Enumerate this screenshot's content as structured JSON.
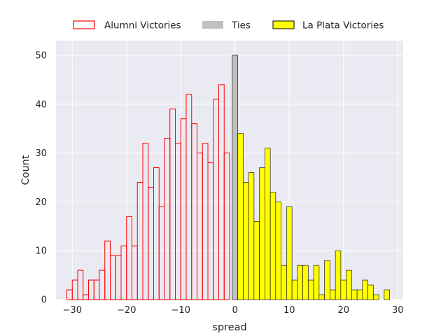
{
  "chart_data": {
    "type": "histogram",
    "title": "",
    "xlabel": "spread",
    "ylabel": "Count",
    "xlim": [
      -33,
      31
    ],
    "ylim": [
      0,
      53
    ],
    "bin_width": 1,
    "xticks": [
      -30,
      -20,
      -10,
      0,
      10,
      20,
      30
    ],
    "xtick_labels": [
      "−30",
      "−20",
      "−10",
      "0",
      "10",
      "20",
      "30"
    ],
    "yticks": [
      0,
      10,
      20,
      30,
      40,
      50
    ],
    "ytick_labels": [
      "0",
      "10",
      "20",
      "30",
      "40",
      "50"
    ],
    "grid": true,
    "legend_position": "top, above plot",
    "series": [
      {
        "name": "Alumni Victories",
        "style": "outline",
        "color": "#ff0000",
        "bin_starts": [
          -31,
          -30,
          -29,
          -28,
          -27,
          -26,
          -25,
          -24,
          -23,
          -22,
          -21,
          -20,
          -19,
          -18,
          -17,
          -16,
          -15,
          -14,
          -13,
          -12,
          -11,
          -10,
          -9,
          -8,
          -7,
          -6,
          -5,
          -4,
          -3,
          -2,
          -1
        ],
        "counts": [
          2,
          4,
          6,
          1,
          4,
          4,
          6,
          12,
          9,
          9,
          11,
          17,
          11,
          24,
          32,
          23,
          27,
          19,
          33,
          39,
          32,
          37,
          42,
          36,
          30,
          32,
          28,
          41,
          44,
          30,
          0
        ]
      },
      {
        "name": "Ties",
        "style": "filled",
        "color": "#c0c0c0",
        "bin_starts": [
          -0.5
        ],
        "counts": [
          50
        ]
      },
      {
        "name": "La Plata Victories",
        "style": "filled",
        "color": "#ffff00",
        "bin_starts": [
          0.5,
          1.5,
          2.5,
          3.5,
          4.5,
          5.5,
          6.5,
          7.5,
          8.5,
          9.5,
          10.5,
          11.5,
          12.5,
          13.5,
          14.5,
          15.5,
          16.5,
          17.5,
          18.5,
          19.5,
          20.5,
          21.5,
          22.5,
          23.5,
          24.5,
          25.5,
          26.5,
          27.5
        ],
        "counts": [
          34,
          24,
          26,
          16,
          27,
          31,
          22,
          20,
          7,
          19,
          4,
          7,
          7,
          4,
          7,
          1,
          8,
          2,
          10,
          4,
          6,
          2,
          2,
          4,
          3,
          1,
          0,
          2
        ]
      }
    ]
  },
  "colors": {
    "plot_background": "#eaeaf2",
    "grid": "#ffffff",
    "text": "#262626",
    "bar_edge": "#000000"
  }
}
